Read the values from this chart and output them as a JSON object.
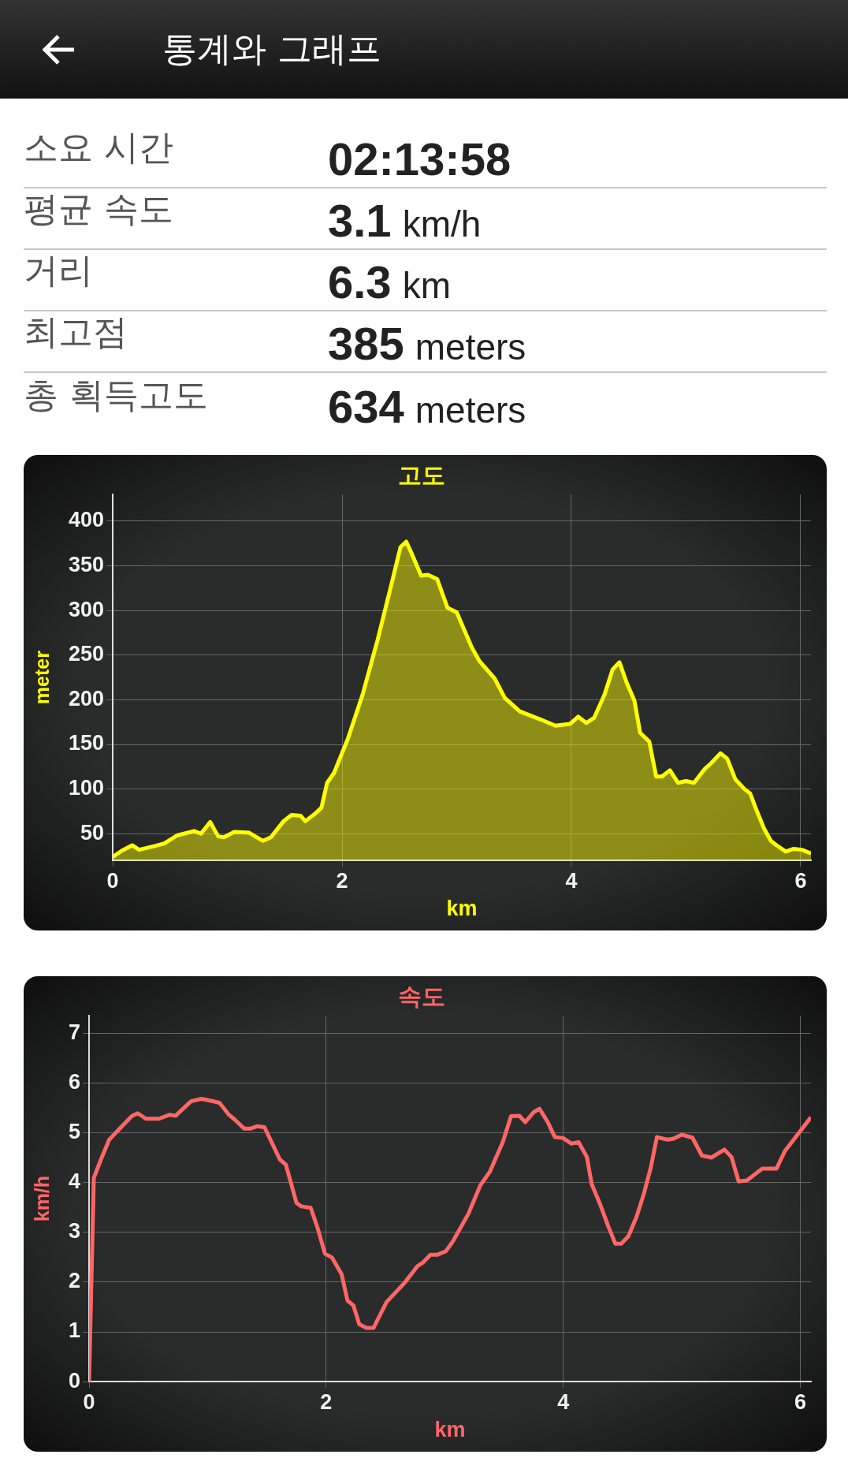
{
  "chart_data": [
    {
      "type": "other",
      "title": "통계와 그래프",
      "annotations": [
        "소요 시간",
        "02:13:58",
        "평균 속도",
        "3.1 km/h",
        "거리",
        "6.3 km",
        "최고점",
        "385 meters",
        "총 획득고도",
        "634 meters"
      ]
    },
    {
      "type": "area",
      "title": "고도",
      "xlabel": "km",
      "ylabel": "meter",
      "grid": true,
      "marker": "none",
      "xlim": [
        0,
        6.09
      ],
      "xticks": [
        0,
        2,
        4,
        6
      ],
      "ylim": [
        20,
        430
      ],
      "yticks": [
        50,
        100,
        150,
        200,
        250,
        300,
        350,
        400
      ],
      "x": [
        0,
        0.08,
        0.17,
        0.23,
        0.36,
        0.45,
        0.56,
        0.71,
        0.77,
        0.85,
        0.92,
        0.97,
        1.06,
        1.19,
        1.31,
        1.38,
        1.49,
        1.56,
        1.64,
        1.68,
        1.77,
        1.82,
        1.87,
        1.93,
        2.05,
        2.18,
        2.31,
        2.44,
        2.51,
        2.56,
        2.6,
        2.69,
        2.75,
        2.83,
        2.92,
        3,
        3.13,
        3.2,
        3.33,
        3.42,
        3.55,
        3.73,
        3.86,
        3.99,
        4.06,
        4.13,
        4.2,
        4.29,
        4.36,
        4.42,
        4.48,
        4.55,
        4.6,
        4.68,
        4.74,
        4.79,
        4.86,
        4.93,
        5,
        5.07,
        5.16,
        5.22,
        5.3,
        5.36,
        5.43,
        5.51,
        5.56,
        5.61,
        5.68,
        5.74,
        5.79,
        5.87,
        5.94,
        6.01,
        6.09
      ],
      "series": [
        {
          "color": "#ffff00",
          "values": [
            24,
            31,
            37,
            32,
            36,
            39,
            48,
            53,
            50,
            63,
            47,
            46,
            52,
            51,
            42,
            46,
            64,
            71,
            70,
            64,
            73,
            79,
            107,
            118,
            156,
            206,
            267,
            334,
            371,
            377,
            366,
            339,
            340,
            335,
            303,
            298,
            259,
            243,
            224,
            202,
            187,
            178,
            171,
            173,
            181,
            174,
            180,
            206,
            234,
            242,
            220,
            199,
            163,
            153,
            114,
            114,
            121,
            107,
            109,
            107,
            122,
            129,
            140,
            134,
            111,
            100,
            95,
            78,
            56,
            42,
            37,
            30,
            33,
            32,
            28
          ]
        }
      ]
    },
    {
      "type": "line",
      "title": "속도",
      "xlabel": "km",
      "ylabel": "km/h",
      "grid": true,
      "marker": "none",
      "xlim": [
        0,
        6.09
      ],
      "xticks": [
        0,
        2,
        4,
        6
      ],
      "ylim": [
        0,
        7.35
      ],
      "yticks": [
        0,
        1,
        2,
        3,
        4,
        5,
        6,
        7
      ],
      "x": [
        0,
        0.04,
        0.1,
        0.17,
        0.27,
        0.36,
        0.41,
        0.48,
        0.59,
        0.68,
        0.73,
        0.86,
        0.95,
        1.03,
        1.1,
        1.18,
        1.23,
        1.31,
        1.36,
        1.42,
        1.48,
        1.61,
        1.66,
        1.75,
        1.79,
        1.87,
        1.93,
        1.99,
        2.05,
        2.13,
        2.18,
        2.23,
        2.28,
        2.34,
        2.4,
        2.51,
        2.66,
        2.77,
        2.81,
        2.88,
        2.94,
        3.01,
        3.07,
        3.2,
        3.3,
        3.38,
        3.49,
        3.56,
        3.63,
        3.68,
        3.75,
        3.8,
        3.87,
        3.93,
        4,
        4.07,
        4.13,
        4.2,
        4.24,
        4.31,
        4.38,
        4.44,
        4.49,
        4.55,
        4.62,
        4.68,
        4.74,
        4.79,
        4.88,
        4.93,
        5,
        5.09,
        5.17,
        5.25,
        5.36,
        5.42,
        5.48,
        5.55,
        5.68,
        5.8,
        5.87,
        6.09
      ],
      "series": [
        {
          "color": "#ff6666",
          "values": [
            0,
            4.09,
            4.46,
            4.86,
            5.11,
            5.33,
            5.39,
            5.28,
            5.28,
            5.36,
            5.34,
            5.63,
            5.68,
            5.64,
            5.6,
            5.36,
            5.26,
            5.08,
            5.08,
            5.13,
            5.11,
            4.46,
            4.36,
            3.59,
            3.52,
            3.49,
            3.07,
            2.57,
            2.49,
            2.16,
            1.63,
            1.53,
            1.15,
            1.08,
            1.08,
            1.6,
            1.98,
            2.32,
            2.38,
            2.55,
            2.55,
            2.62,
            2.82,
            3.37,
            3.94,
            4.21,
            4.81,
            5.33,
            5.34,
            5.21,
            5.41,
            5.48,
            5.21,
            4.91,
            4.89,
            4.78,
            4.81,
            4.51,
            3.97,
            3.57,
            3.12,
            2.77,
            2.77,
            2.92,
            3.32,
            3.77,
            4.31,
            4.91,
            4.86,
            4.88,
            4.96,
            4.9,
            4.54,
            4.5,
            4.66,
            4.51,
            4.02,
            4.04,
            4.28,
            4.28,
            4.63,
            5.31
          ]
        }
      ]
    }
  ]
}
